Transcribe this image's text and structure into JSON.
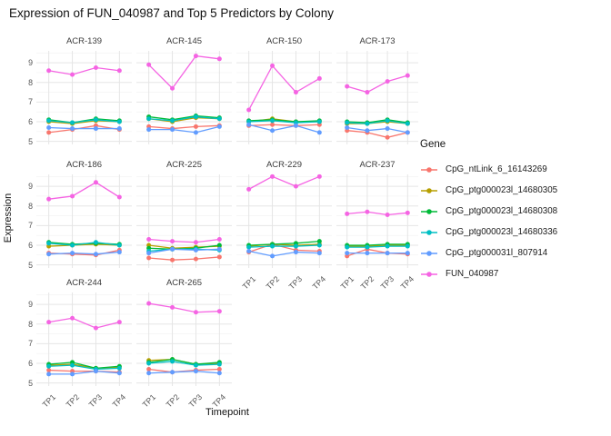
{
  "title": "Expression of FUN_040987 and Top 5 Predictors by Colony",
  "legend": {
    "title": "Gene"
  },
  "axes": {
    "x_title": "Timepoint",
    "y_title": "Expression",
    "x_ticks": [
      "TP1",
      "TP2",
      "TP3",
      "TP4"
    ],
    "y_ticks": [
      9,
      8,
      7,
      6,
      5
    ]
  },
  "chart_data": {
    "type": "line",
    "title": "Expression of FUN_040987 and Top 5 Predictors by Colony",
    "xlabel": "Timepoint",
    "ylabel": "Expression",
    "categories": [
      "TP1",
      "TP2",
      "TP3",
      "TP4"
    ],
    "ylim": [
      5,
      9.5
    ],
    "grid": true,
    "legend_position": "right",
    "facet_by": "Colony",
    "series": [
      {
        "name": "CpG_ntLink_6_16143269",
        "color": "#F8766D"
      },
      {
        "name": "CpG_ptg000023l_14680305",
        "color": "#B79F00"
      },
      {
        "name": "CpG_ptg000023l_14680308",
        "color": "#00BA38"
      },
      {
        "name": "CpG_ptg000023l_14680336",
        "color": "#00BFC4"
      },
      {
        "name": "CpG_ptg000031l_807914",
        "color": "#619CFF"
      },
      {
        "name": "FUN_040987",
        "color": "#F564E3"
      }
    ],
    "facets": [
      {
        "colony": "ACR-139",
        "values": [
          [
            5.45,
            5.6,
            5.8,
            5.6
          ],
          [
            6.0,
            5.9,
            6.05,
            6.0
          ],
          [
            6.1,
            5.95,
            6.15,
            6.05
          ],
          [
            6.05,
            5.95,
            6.1,
            6.0
          ],
          [
            5.7,
            5.65,
            5.65,
            5.65
          ],
          [
            8.6,
            8.4,
            8.75,
            8.6
          ]
        ]
      },
      {
        "colony": "ACR-145",
        "values": [
          [
            5.75,
            5.65,
            5.75,
            5.8
          ],
          [
            6.15,
            6.0,
            6.2,
            6.15
          ],
          [
            6.25,
            6.1,
            6.3,
            6.2
          ],
          [
            6.15,
            6.05,
            6.25,
            6.15
          ],
          [
            5.6,
            5.6,
            5.45,
            5.75
          ],
          [
            8.9,
            7.7,
            9.35,
            9.2
          ]
        ]
      },
      {
        "colony": "ACR-150",
        "values": [
          [
            5.8,
            5.85,
            5.8,
            5.85
          ],
          [
            6.0,
            6.15,
            6.0,
            6.0
          ],
          [
            6.05,
            6.1,
            6.0,
            6.05
          ],
          [
            6.0,
            6.05,
            5.95,
            6.0
          ],
          [
            5.85,
            5.55,
            5.8,
            5.45
          ],
          [
            6.6,
            8.85,
            7.5,
            8.2
          ]
        ]
      },
      {
        "colony": "ACR-173",
        "values": [
          [
            5.55,
            5.45,
            5.2,
            5.45
          ],
          [
            5.9,
            5.9,
            6.0,
            5.9
          ],
          [
            6.0,
            5.95,
            6.1,
            5.95
          ],
          [
            5.95,
            5.9,
            6.05,
            5.9
          ],
          [
            5.7,
            5.55,
            5.65,
            5.45
          ],
          [
            7.8,
            7.5,
            8.05,
            8.35
          ]
        ]
      },
      {
        "colony": "ACR-186",
        "values": [
          [
            5.6,
            5.55,
            5.5,
            5.75
          ],
          [
            5.95,
            6.0,
            6.05,
            6.0
          ],
          [
            6.15,
            6.05,
            6.1,
            6.05
          ],
          [
            6.1,
            6.0,
            6.15,
            6.0
          ],
          [
            5.55,
            5.6,
            5.55,
            5.65
          ],
          [
            8.35,
            8.5,
            9.2,
            8.45
          ]
        ]
      },
      {
        "colony": "ACR-225",
        "values": [
          [
            5.35,
            5.25,
            5.3,
            5.4
          ],
          [
            6.0,
            5.85,
            5.9,
            5.95
          ],
          [
            5.85,
            5.8,
            5.85,
            6.0
          ],
          [
            5.7,
            5.8,
            5.8,
            5.75
          ],
          [
            5.6,
            5.8,
            5.75,
            5.8
          ],
          [
            6.3,
            6.2,
            6.15,
            6.3
          ]
        ]
      },
      {
        "colony": "ACR-229",
        "values": [
          [
            5.65,
            6.05,
            5.75,
            5.7
          ],
          [
            5.95,
            6.05,
            6.0,
            6.05
          ],
          [
            6.0,
            6.05,
            6.1,
            6.2
          ],
          [
            5.9,
            5.95,
            5.95,
            6.0
          ],
          [
            5.7,
            5.45,
            5.65,
            5.6
          ],
          [
            8.85,
            9.5,
            9.0,
            9.5
          ]
        ]
      },
      {
        "colony": "ACR-237",
        "values": [
          [
            5.45,
            5.8,
            5.6,
            5.55
          ],
          [
            5.95,
            5.95,
            6.0,
            6.0
          ],
          [
            6.0,
            6.0,
            6.05,
            6.05
          ],
          [
            5.9,
            5.9,
            5.95,
            5.95
          ],
          [
            5.6,
            5.6,
            5.6,
            5.6
          ],
          [
            7.6,
            7.7,
            7.55,
            7.65
          ]
        ]
      },
      {
        "colony": "ACR-244",
        "values": [
          [
            5.65,
            5.6,
            5.6,
            5.55
          ],
          [
            5.9,
            5.95,
            5.75,
            5.8
          ],
          [
            5.95,
            6.05,
            5.75,
            5.85
          ],
          [
            5.85,
            5.9,
            5.7,
            5.75
          ],
          [
            5.45,
            5.45,
            5.6,
            5.5
          ],
          [
            8.1,
            8.3,
            7.8,
            8.1
          ]
        ]
      },
      {
        "colony": "ACR-265",
        "values": [
          [
            5.7,
            5.55,
            5.65,
            5.7
          ],
          [
            6.15,
            6.2,
            5.95,
            6.0
          ],
          [
            6.05,
            6.2,
            5.95,
            6.05
          ],
          [
            6.0,
            6.1,
            5.9,
            5.95
          ],
          [
            5.5,
            5.55,
            5.6,
            5.5
          ],
          [
            9.05,
            8.85,
            8.6,
            8.65
          ]
        ]
      }
    ]
  }
}
